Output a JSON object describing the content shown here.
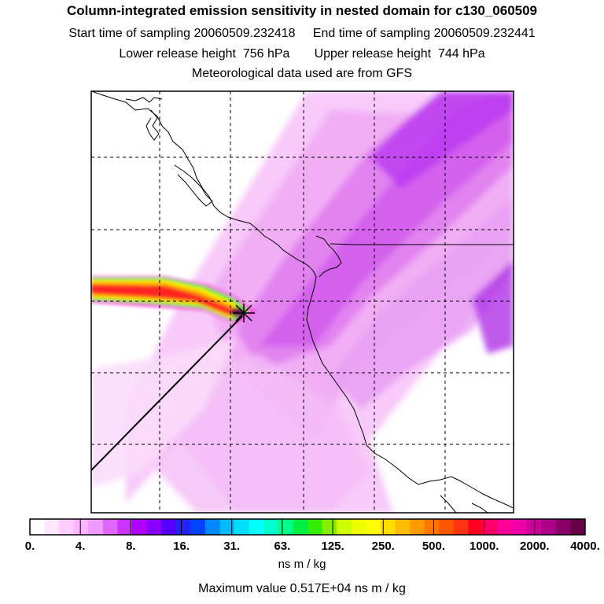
{
  "header": {
    "title": "Column-integrated emission sensitivity in nested domain for c130_060509",
    "start_label": "Start time of sampling",
    "start_value": "20060509.232418",
    "end_label": "End time of sampling",
    "end_value": "20060509.232441",
    "lower_label": "Lower release height",
    "lower_value": "756 hPa",
    "upper_label": "Upper release height",
    "upper_value": "744 hPa",
    "met_text": "Meteorological data used are from GFS"
  },
  "chart_data": {
    "type": "heatmap",
    "title": "Column-integrated emission sensitivity in nested domain for c130_060509",
    "colorbar": {
      "tick_labels": [
        "0.",
        "4.",
        "8.",
        "16.",
        "31.",
        "63.",
        "125.",
        "250.",
        "500.",
        "1000.",
        "2000.",
        "4000."
      ],
      "tick_values": [
        0,
        4,
        8,
        16,
        31,
        63,
        125,
        250,
        500,
        1000,
        2000,
        4000
      ],
      "colors": [
        "#ffffff",
        "#ffe6ff",
        "#ffccff",
        "#ffb3ff",
        "#f099ff",
        "#e066ff",
        "#cc33ff",
        "#b000ff",
        "#8800ff",
        "#5500ff",
        "#2222ff",
        "#0044ff",
        "#0088ff",
        "#00bbff",
        "#00ddff",
        "#00ffff",
        "#00ffcc",
        "#00ff88",
        "#00ee44",
        "#33ee00",
        "#88ee00",
        "#ccff00",
        "#eeff00",
        "#ffff00",
        "#ffdd00",
        "#ffbb00",
        "#ff9900",
        "#ff7700",
        "#ff5500",
        "#ff3311",
        "#ff0022",
        "#ff0066",
        "#ff0099",
        "#ee00aa",
        "#cc0099",
        "#aa0088",
        "#880066",
        "#660044"
      ],
      "units": "ns m / kg"
    },
    "max_value_label": "Maximum value",
    "max_value": "0.517E+04",
    "max_value_units": "ns m / kg",
    "release_point_marker": "star"
  }
}
